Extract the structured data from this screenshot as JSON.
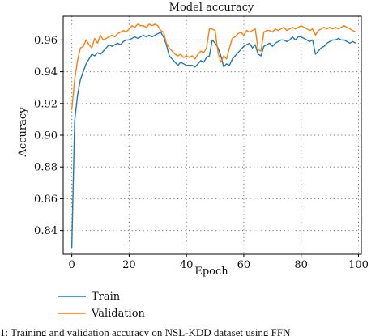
{
  "chart_data": {
    "type": "line",
    "title": "Model accuracy",
    "xlabel": "Epoch",
    "ylabel": "Accuracy",
    "xlim": [
      -3,
      101
    ],
    "ylim": [
      0.825,
      0.975
    ],
    "xticks": [
      0,
      20,
      40,
      60,
      80,
      100
    ],
    "yticks": [
      0.84,
      0.86,
      0.88,
      0.9,
      0.92,
      0.94,
      0.96
    ],
    "ytick_labels": [
      "0.84",
      "0.86",
      "0.88",
      "0.90",
      "0.92",
      "0.94",
      "0.96"
    ],
    "grid": true,
    "legend_position": "below-left",
    "series": [
      {
        "name": "Train",
        "color": "#1f77b4",
        "x": [
          0,
          1,
          2,
          3,
          4,
          5,
          6,
          7,
          8,
          9,
          10,
          11,
          12,
          13,
          14,
          15,
          16,
          17,
          18,
          19,
          20,
          21,
          22,
          23,
          24,
          25,
          26,
          27,
          28,
          29,
          30,
          31,
          32,
          33,
          34,
          35,
          36,
          37,
          38,
          39,
          40,
          41,
          42,
          43,
          44,
          45,
          46,
          47,
          48,
          49,
          50,
          51,
          52,
          53,
          54,
          55,
          56,
          57,
          58,
          59,
          60,
          61,
          62,
          63,
          64,
          65,
          66,
          67,
          68,
          69,
          70,
          71,
          72,
          73,
          74,
          75,
          76,
          77,
          78,
          79,
          80,
          81,
          82,
          83,
          84,
          85,
          86,
          87,
          88,
          89,
          90,
          91,
          92,
          93,
          94,
          95,
          96,
          97,
          98,
          99
        ],
        "values": [
          0.829,
          0.909,
          0.925,
          0.935,
          0.94,
          0.945,
          0.948,
          0.951,
          0.95,
          0.952,
          0.951,
          0.953,
          0.955,
          0.957,
          0.956,
          0.957,
          0.958,
          0.957,
          0.959,
          0.96,
          0.96,
          0.961,
          0.962,
          0.961,
          0.962,
          0.963,
          0.962,
          0.963,
          0.962,
          0.963,
          0.964,
          0.965,
          0.962,
          0.957,
          0.95,
          0.948,
          0.946,
          0.944,
          0.946,
          0.945,
          0.944,
          0.944,
          0.944,
          0.943,
          0.945,
          0.947,
          0.946,
          0.949,
          0.95,
          0.96,
          0.958,
          0.955,
          0.95,
          0.943,
          0.945,
          0.944,
          0.948,
          0.95,
          0.952,
          0.954,
          0.956,
          0.957,
          0.958,
          0.955,
          0.957,
          0.951,
          0.95,
          0.956,
          0.957,
          0.958,
          0.956,
          0.958,
          0.959,
          0.96,
          0.96,
          0.959,
          0.96,
          0.962,
          0.96,
          0.962,
          0.962,
          0.961,
          0.96,
          0.959,
          0.96,
          0.951,
          0.953,
          0.955,
          0.956,
          0.958,
          0.959,
          0.96,
          0.96,
          0.961,
          0.96,
          0.96,
          0.959,
          0.958,
          0.959,
          0.958
        ]
      },
      {
        "name": "Validation",
        "color": "#ff7f0e",
        "x": [
          0,
          1,
          2,
          3,
          4,
          5,
          6,
          7,
          8,
          9,
          10,
          11,
          12,
          13,
          14,
          15,
          16,
          17,
          18,
          19,
          20,
          21,
          22,
          23,
          24,
          25,
          26,
          27,
          28,
          29,
          30,
          31,
          32,
          33,
          34,
          35,
          36,
          37,
          38,
          39,
          40,
          41,
          42,
          43,
          44,
          45,
          46,
          47,
          48,
          49,
          50,
          51,
          52,
          53,
          54,
          55,
          56,
          57,
          58,
          59,
          60,
          61,
          62,
          63,
          64,
          65,
          66,
          67,
          68,
          69,
          70,
          71,
          72,
          73,
          74,
          75,
          76,
          77,
          78,
          79,
          80,
          81,
          82,
          83,
          84,
          85,
          86,
          87,
          88,
          89,
          90,
          91,
          92,
          93,
          94,
          95,
          96,
          97,
          98,
          99
        ],
        "values": [
          0.916,
          0.935,
          0.947,
          0.955,
          0.956,
          0.96,
          0.957,
          0.955,
          0.961,
          0.958,
          0.963,
          0.96,
          0.961,
          0.962,
          0.963,
          0.962,
          0.964,
          0.965,
          0.966,
          0.965,
          0.967,
          0.969,
          0.968,
          0.97,
          0.969,
          0.969,
          0.968,
          0.97,
          0.969,
          0.97,
          0.969,
          0.966,
          0.965,
          0.958,
          0.955,
          0.953,
          0.951,
          0.95,
          0.951,
          0.949,
          0.95,
          0.949,
          0.95,
          0.948,
          0.951,
          0.953,
          0.952,
          0.955,
          0.967,
          0.967,
          0.966,
          0.952,
          0.946,
          0.95,
          0.948,
          0.955,
          0.961,
          0.962,
          0.964,
          0.965,
          0.963,
          0.966,
          0.965,
          0.966,
          0.967,
          0.954,
          0.953,
          0.965,
          0.966,
          0.966,
          0.965,
          0.967,
          0.966,
          0.967,
          0.968,
          0.966,
          0.967,
          0.968,
          0.967,
          0.968,
          0.969,
          0.968,
          0.967,
          0.966,
          0.967,
          0.963,
          0.966,
          0.967,
          0.968,
          0.967,
          0.968,
          0.967,
          0.968,
          0.967,
          0.968,
          0.969,
          0.968,
          0.967,
          0.966,
          0.965
        ]
      }
    ]
  },
  "caption": "1: Training and validation accuracy on NSL-KDD dataset using FFN"
}
